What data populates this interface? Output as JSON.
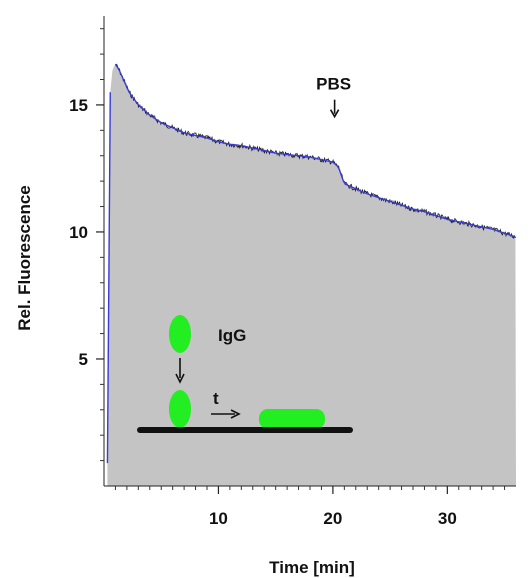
{
  "chart_data": {
    "type": "area",
    "title": "",
    "xlabel": "Time [min]",
    "ylabel": "Rel. Fluorescence",
    "xlim": [
      0,
      36
    ],
    "ylim": [
      0,
      18.5
    ],
    "x_ticks": [
      10,
      20,
      30
    ],
    "y_ticks": [
      5,
      10,
      15
    ],
    "grid": false,
    "colors": {
      "fill": "#c4c4c4",
      "noisy_trace": "#1a1a1a",
      "fit_line": "#3b3bd6",
      "protein": "#22ee22",
      "surface": "#111111"
    },
    "series": [
      {
        "x": [
          0.3,
          0.55,
          0.75,
          1.0,
          1.3,
          1.7,
          2.2,
          3,
          4,
          5,
          6,
          7,
          8,
          9,
          10,
          11,
          12,
          13,
          14,
          15,
          16,
          17,
          18,
          19,
          20,
          20.5,
          20.8,
          21,
          22,
          23,
          24,
          25,
          26,
          27,
          28,
          29,
          30,
          31,
          32,
          33,
          34,
          35,
          36
        ],
        "y": [
          0.9,
          15.5,
          16.4,
          16.6,
          16.4,
          16.0,
          15.5,
          15.0,
          14.6,
          14.3,
          14.1,
          13.9,
          13.8,
          13.7,
          13.55,
          13.45,
          13.4,
          13.3,
          13.2,
          13.1,
          13.05,
          13.0,
          12.95,
          12.85,
          12.75,
          12.55,
          12.15,
          11.9,
          11.7,
          11.5,
          11.35,
          11.2,
          11.05,
          10.9,
          10.8,
          10.65,
          10.5,
          10.4,
          10.3,
          10.2,
          10.1,
          9.95,
          9.8
        ]
      }
    ],
    "annotations": [
      {
        "text": "PBS",
        "x": 20.5,
        "y": 15.6,
        "arrow": "down"
      },
      {
        "text": "IgG"
      },
      {
        "text": "t"
      }
    ]
  }
}
